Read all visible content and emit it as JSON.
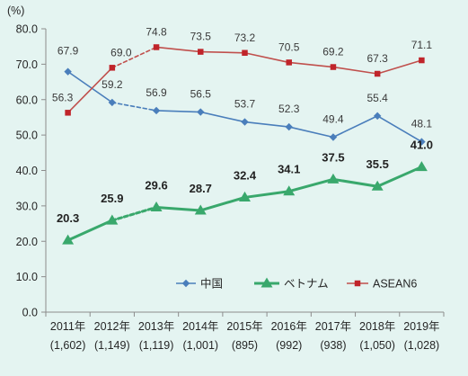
{
  "chart_data": {
    "type": "line",
    "ylabel": "(%)",
    "ylim": [
      0,
      80
    ],
    "yticks": [
      "0.0",
      "10.0",
      "20.0",
      "30.0",
      "40.0",
      "50.0",
      "60.0",
      "70.0",
      "80.0"
    ],
    "categories": [
      "2011年",
      "2012年",
      "2013年",
      "2014年",
      "2015年",
      "2016年",
      "2017年",
      "2018年",
      "2019年"
    ],
    "category_sublabels": [
      "(1,602)",
      "(1,149)",
      "(1,119)",
      "(1,001)",
      "(895)",
      "(992)",
      "(938)",
      "(1,050)",
      "(1,028)"
    ],
    "dashed_between": [
      "2012年",
      "2013年"
    ],
    "grid": false,
    "legend": "bottom-right inside plot",
    "series": [
      {
        "name": "中国",
        "color": "#4a7ebb",
        "marker": "diamond",
        "values": [
          67.9,
          59.2,
          56.9,
          56.5,
          53.7,
          52.3,
          49.4,
          55.4,
          48.1
        ]
      },
      {
        "name": "ベトナム",
        "color": "#39a86c",
        "marker": "triangle",
        "values": [
          20.3,
          25.9,
          29.6,
          28.7,
          32.4,
          34.1,
          37.5,
          35.5,
          41.0
        ]
      },
      {
        "name": "ASEAN6",
        "color": "#c0504d",
        "marker_color": "#c0242a",
        "marker": "square",
        "values": [
          56.3,
          69.0,
          74.8,
          73.5,
          73.2,
          70.5,
          69.2,
          67.3,
          71.1
        ]
      }
    ]
  }
}
